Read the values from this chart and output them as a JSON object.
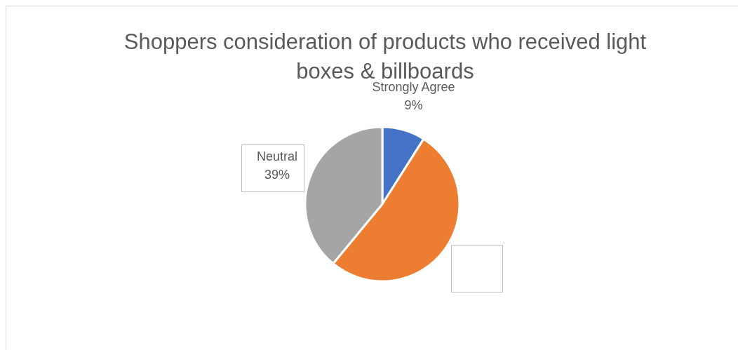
{
  "chart_data": {
    "type": "pie",
    "title": "Shoppers consideration of products who received light boxes & billboards",
    "categories": [
      "Strongly Agree",
      null,
      "Neutral"
    ],
    "values": [
      9,
      52,
      39
    ],
    "colors": [
      "#4472c4",
      "#ed7d31",
      "#a5a5a5"
    ],
    "value_labels": [
      "9%",
      null,
      "39%"
    ],
    "legend": false
  }
}
